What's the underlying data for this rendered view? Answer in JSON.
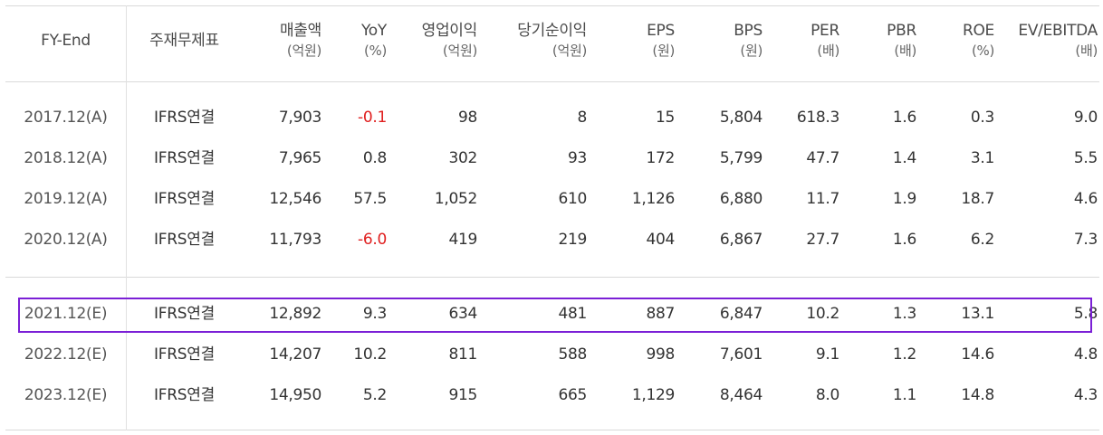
{
  "headers": [
    {
      "label": "FY-End",
      "unit": ""
    },
    {
      "label": "주재무제표",
      "unit": ""
    },
    {
      "label": "매출액",
      "unit": "(억원)"
    },
    {
      "label": "YoY",
      "unit": "(%)"
    },
    {
      "label": "영업이익",
      "unit": "(억원)"
    },
    {
      "label": "당기순이익",
      "unit": "(억원)"
    },
    {
      "label": "EPS",
      "unit": "(원)"
    },
    {
      "label": "BPS",
      "unit": "(원)"
    },
    {
      "label": "PER",
      "unit": "(배)"
    },
    {
      "label": "PBR",
      "unit": "(배)"
    },
    {
      "label": "ROE",
      "unit": "(%)"
    },
    {
      "label": "EV/EBITDA",
      "unit": "(배)"
    }
  ],
  "rows": [
    [
      "2017.12(A)",
      "IFRS연결",
      "7,903",
      "-0.1",
      "98",
      "8",
      "15",
      "5,804",
      "618.3",
      "1.6",
      "0.3",
      "9.0"
    ],
    [
      "2018.12(A)",
      "IFRS연결",
      "7,965",
      "0.8",
      "302",
      "93",
      "172",
      "5,799",
      "47.7",
      "1.4",
      "3.1",
      "5.5"
    ],
    [
      "2019.12(A)",
      "IFRS연결",
      "12,546",
      "57.5",
      "1,052",
      "610",
      "1,126",
      "6,880",
      "11.7",
      "1.9",
      "18.7",
      "4.6"
    ],
    [
      "2020.12(A)",
      "IFRS연결",
      "11,793",
      "-6.0",
      "419",
      "219",
      "404",
      "6,867",
      "27.7",
      "1.6",
      "6.2",
      "7.3"
    ],
    [
      "2021.12(E)",
      "IFRS연결",
      "12,892",
      "9.3",
      "634",
      "481",
      "887",
      "6,847",
      "10.2",
      "1.3",
      "13.1",
      "5.8"
    ],
    [
      "2022.12(E)",
      "IFRS연결",
      "14,207",
      "10.2",
      "811",
      "588",
      "998",
      "7,601",
      "9.1",
      "1.2",
      "14.6",
      "4.8"
    ],
    [
      "2023.12(E)",
      "IFRS연결",
      "14,950",
      "5.2",
      "915",
      "665",
      "1,129",
      "8,464",
      "8.0",
      "1.1",
      "14.8",
      "4.3"
    ]
  ],
  "colors": {
    "negative": "#e02020",
    "highlight_border": "#7b1fd6",
    "rule": "#d9d9d9"
  }
}
